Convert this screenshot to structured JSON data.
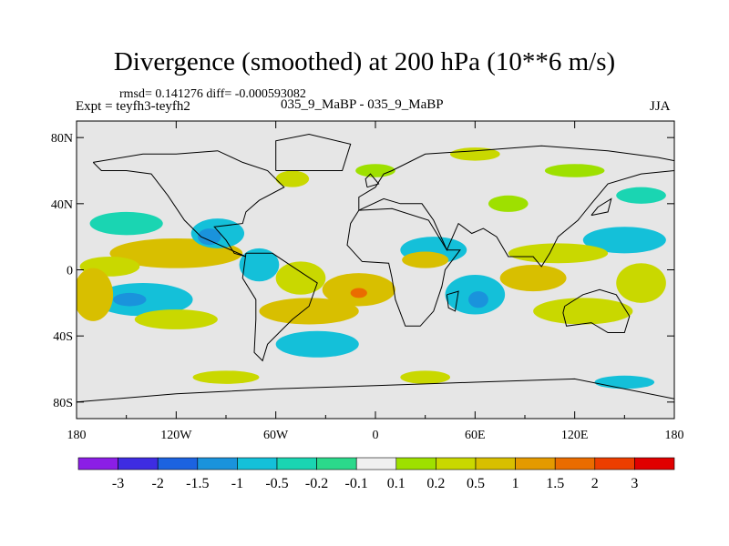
{
  "chart_data": {
    "type": "heatmap",
    "title": "Divergence (smoothed) at 200 hPa (10**6 m/s)",
    "stats": "rmsd= 0.141276 diff= -0.000593082",
    "left_label": "Expt = teyfh3-teyfh2",
    "center_label": "035_9_MaBP - 035_9_MaBP",
    "right_label": "JJA",
    "xlim": [
      -180,
      180
    ],
    "ylim": [
      -90,
      90
    ],
    "x_ticks": [
      {
        "value": -180,
        "label": "180"
      },
      {
        "value": -120,
        "label": "120W"
      },
      {
        "value": -60,
        "label": "60W"
      },
      {
        "value": 0,
        "label": "0"
      },
      {
        "value": 60,
        "label": "60E"
      },
      {
        "value": 120,
        "label": "120E"
      },
      {
        "value": 180,
        "label": "180"
      }
    ],
    "y_ticks": [
      {
        "value": 80,
        "label": "80N"
      },
      {
        "value": 40,
        "label": "40N"
      },
      {
        "value": 0,
        "label": "0"
      },
      {
        "value": -40,
        "label": "40S"
      },
      {
        "value": -80,
        "label": "80S"
      }
    ],
    "levels": [
      "-3",
      "-2",
      "-1.5",
      "-1",
      "-0.5",
      "-0.2",
      "-0.1",
      "0.1",
      "0.2",
      "0.5",
      "1",
      "1.5",
      "2",
      "3"
    ],
    "colors": [
      "#8b1ee6",
      "#3e2ce2",
      "#1c63e0",
      "#1a93dc",
      "#14c0d9",
      "#1ad5b2",
      "#2bd98b",
      "#f0f0f0",
      "#9ee000",
      "#c9d800",
      "#d8bf00",
      "#e49a00",
      "#ea6c00",
      "#ec3e00",
      "#e00000"
    ],
    "background_color": "#e6e6e6",
    "blobs": [
      {
        "lon": -120,
        "lat": 10,
        "rx": 40,
        "ry": 9,
        "level": 10
      },
      {
        "lon": -160,
        "lat": 2,
        "rx": 18,
        "ry": 6,
        "level": 9
      },
      {
        "lon": -95,
        "lat": 22,
        "rx": 16,
        "ry": 9,
        "level": 4
      },
      {
        "lon": -100,
        "lat": 20,
        "rx": 7,
        "ry": 5,
        "level": 3
      },
      {
        "lon": -150,
        "lat": 28,
        "rx": 22,
        "ry": 7,
        "level": 5
      },
      {
        "lon": -140,
        "lat": -18,
        "rx": 30,
        "ry": 10,
        "level": 4
      },
      {
        "lon": -148,
        "lat": -18,
        "rx": 10,
        "ry": 4,
        "level": 3
      },
      {
        "lon": -170,
        "lat": -15,
        "rx": 12,
        "ry": 16,
        "level": 10
      },
      {
        "lon": -120,
        "lat": -30,
        "rx": 25,
        "ry": 6,
        "level": 9
      },
      {
        "lon": -40,
        "lat": -25,
        "rx": 30,
        "ry": 8,
        "level": 10
      },
      {
        "lon": -70,
        "lat": 3,
        "rx": 12,
        "ry": 10,
        "level": 4
      },
      {
        "lon": -45,
        "lat": -5,
        "rx": 15,
        "ry": 10,
        "level": 9
      },
      {
        "lon": -10,
        "lat": -12,
        "rx": 22,
        "ry": 10,
        "level": 10
      },
      {
        "lon": -10,
        "lat": -14,
        "rx": 5,
        "ry": 3,
        "level": 12
      },
      {
        "lon": -35,
        "lat": -45,
        "rx": 25,
        "ry": 8,
        "level": 4
      },
      {
        "lon": 35,
        "lat": 12,
        "rx": 20,
        "ry": 8,
        "level": 4
      },
      {
        "lon": 30,
        "lat": 6,
        "rx": 14,
        "ry": 5,
        "level": 10
      },
      {
        "lon": 60,
        "lat": -15,
        "rx": 18,
        "ry": 12,
        "level": 4
      },
      {
        "lon": 62,
        "lat": -18,
        "rx": 6,
        "ry": 5,
        "level": 3
      },
      {
        "lon": 95,
        "lat": -5,
        "rx": 20,
        "ry": 8,
        "level": 10
      },
      {
        "lon": 125,
        "lat": -25,
        "rx": 30,
        "ry": 8,
        "level": 9
      },
      {
        "lon": 150,
        "lat": 18,
        "rx": 25,
        "ry": 8,
        "level": 4
      },
      {
        "lon": 160,
        "lat": -8,
        "rx": 15,
        "ry": 12,
        "level": 9
      },
      {
        "lon": 110,
        "lat": 10,
        "rx": 30,
        "ry": 6,
        "level": 9
      },
      {
        "lon": 80,
        "lat": 40,
        "rx": 12,
        "ry": 5,
        "level": 8
      },
      {
        "lon": 120,
        "lat": 60,
        "rx": 18,
        "ry": 4,
        "level": 8
      },
      {
        "lon": -50,
        "lat": 55,
        "rx": 10,
        "ry": 5,
        "level": 9
      },
      {
        "lon": 0,
        "lat": 60,
        "rx": 12,
        "ry": 4,
        "level": 8
      },
      {
        "lon": 60,
        "lat": 70,
        "rx": 15,
        "ry": 4,
        "level": 9
      },
      {
        "lon": 160,
        "lat": 45,
        "rx": 15,
        "ry": 5,
        "level": 5
      },
      {
        "lon": -90,
        "lat": -65,
        "rx": 20,
        "ry": 4,
        "level": 9
      },
      {
        "lon": 150,
        "lat": -68,
        "rx": 18,
        "ry": 4,
        "level": 4
      },
      {
        "lon": 30,
        "lat": -65,
        "rx": 15,
        "ry": 4,
        "level": 9
      }
    ],
    "coastlines": [
      [
        [
          -170,
          65
        ],
        [
          -140,
          70
        ],
        [
          -120,
          70
        ],
        [
          -95,
          72
        ],
        [
          -80,
          65
        ],
        [
          -65,
          60
        ],
        [
          -55,
          50
        ],
        [
          -70,
          42
        ],
        [
          -78,
          35
        ],
        [
          -80,
          28
        ],
        [
          -97,
          26
        ],
        [
          -90,
          18
        ],
        [
          -85,
          10
        ],
        [
          -78,
          8
        ],
        [
          -105,
          20
        ],
        [
          -115,
          30
        ],
        [
          -125,
          45
        ],
        [
          -135,
          58
        ],
        [
          -150,
          60
        ],
        [
          -165,
          60
        ],
        [
          -170,
          65
        ]
      ],
      [
        [
          -78,
          10
        ],
        [
          -62,
          10
        ],
        [
          -50,
          2
        ],
        [
          -35,
          -8
        ],
        [
          -40,
          -22
        ],
        [
          -50,
          -30
        ],
        [
          -58,
          -38
        ],
        [
          -65,
          -45
        ],
        [
          -68,
          -55
        ],
        [
          -73,
          -50
        ],
        [
          -72,
          -30
        ],
        [
          -72,
          -18
        ],
        [
          -80,
          -5
        ],
        [
          -78,
          10
        ]
      ],
      [
        [
          -10,
          36
        ],
        [
          -15,
          28
        ],
        [
          -17,
          15
        ],
        [
          -8,
          5
        ],
        [
          8,
          4
        ],
        [
          10,
          -5
        ],
        [
          12,
          -18
        ],
        [
          18,
          -34
        ],
        [
          27,
          -34
        ],
        [
          35,
          -25
        ],
        [
          40,
          -10
        ],
        [
          42,
          0
        ],
        [
          51,
          12
        ],
        [
          43,
          12
        ],
        [
          32,
          30
        ],
        [
          10,
          37
        ],
        [
          -10,
          36
        ]
      ],
      [
        [
          -10,
          36
        ],
        [
          -10,
          44
        ],
        [
          0,
          50
        ],
        [
          5,
          58
        ],
        [
          10,
          60
        ],
        [
          30,
          70
        ],
        [
          60,
          72
        ],
        [
          100,
          75
        ],
        [
          140,
          72
        ],
        [
          170,
          68
        ],
        [
          180,
          66
        ],
        [
          180,
          60
        ],
        [
          160,
          58
        ],
        [
          140,
          52
        ],
        [
          130,
          40
        ],
        [
          122,
          30
        ],
        [
          110,
          20
        ],
        [
          105,
          10
        ],
        [
          100,
          2
        ],
        [
          95,
          8
        ],
        [
          80,
          8
        ],
        [
          73,
          20
        ],
        [
          65,
          25
        ],
        [
          58,
          22
        ],
        [
          50,
          28
        ],
        [
          43,
          12
        ],
        [
          35,
          30
        ],
        [
          28,
          40
        ],
        [
          15,
          40
        ],
        [
          5,
          43
        ],
        [
          -10,
          36
        ]
      ],
      [
        [
          114,
          -22
        ],
        [
          113,
          -26
        ],
        [
          115,
          -34
        ],
        [
          130,
          -32
        ],
        [
          140,
          -38
        ],
        [
          150,
          -38
        ],
        [
          153,
          -28
        ],
        [
          145,
          -15
        ],
        [
          135,
          -12
        ],
        [
          125,
          -15
        ],
        [
          114,
          -22
        ]
      ],
      [
        [
          -180,
          -80
        ],
        [
          -120,
          -75
        ],
        [
          -60,
          -72
        ],
        [
          0,
          -70
        ],
        [
          60,
          -68
        ],
        [
          120,
          -66
        ],
        [
          180,
          -78
        ]
      ],
      [
        [
          -60,
          60
        ],
        [
          -20,
          60
        ],
        [
          -15,
          76
        ],
        [
          -40,
          82
        ],
        [
          -60,
          78
        ],
        [
          -60,
          60
        ]
      ],
      [
        [
          43,
          -15
        ],
        [
          50,
          -13
        ],
        [
          48,
          -25
        ],
        [
          44,
          -23
        ],
        [
          43,
          -15
        ]
      ],
      [
        [
          130,
          33
        ],
        [
          140,
          35
        ],
        [
          142,
          43
        ],
        [
          134,
          38
        ],
        [
          130,
          33
        ]
      ],
      [
        [
          -5,
          50
        ],
        [
          2,
          52
        ],
        [
          -3,
          58
        ],
        [
          -6,
          55
        ],
        [
          -5,
          50
        ]
      ]
    ]
  }
}
